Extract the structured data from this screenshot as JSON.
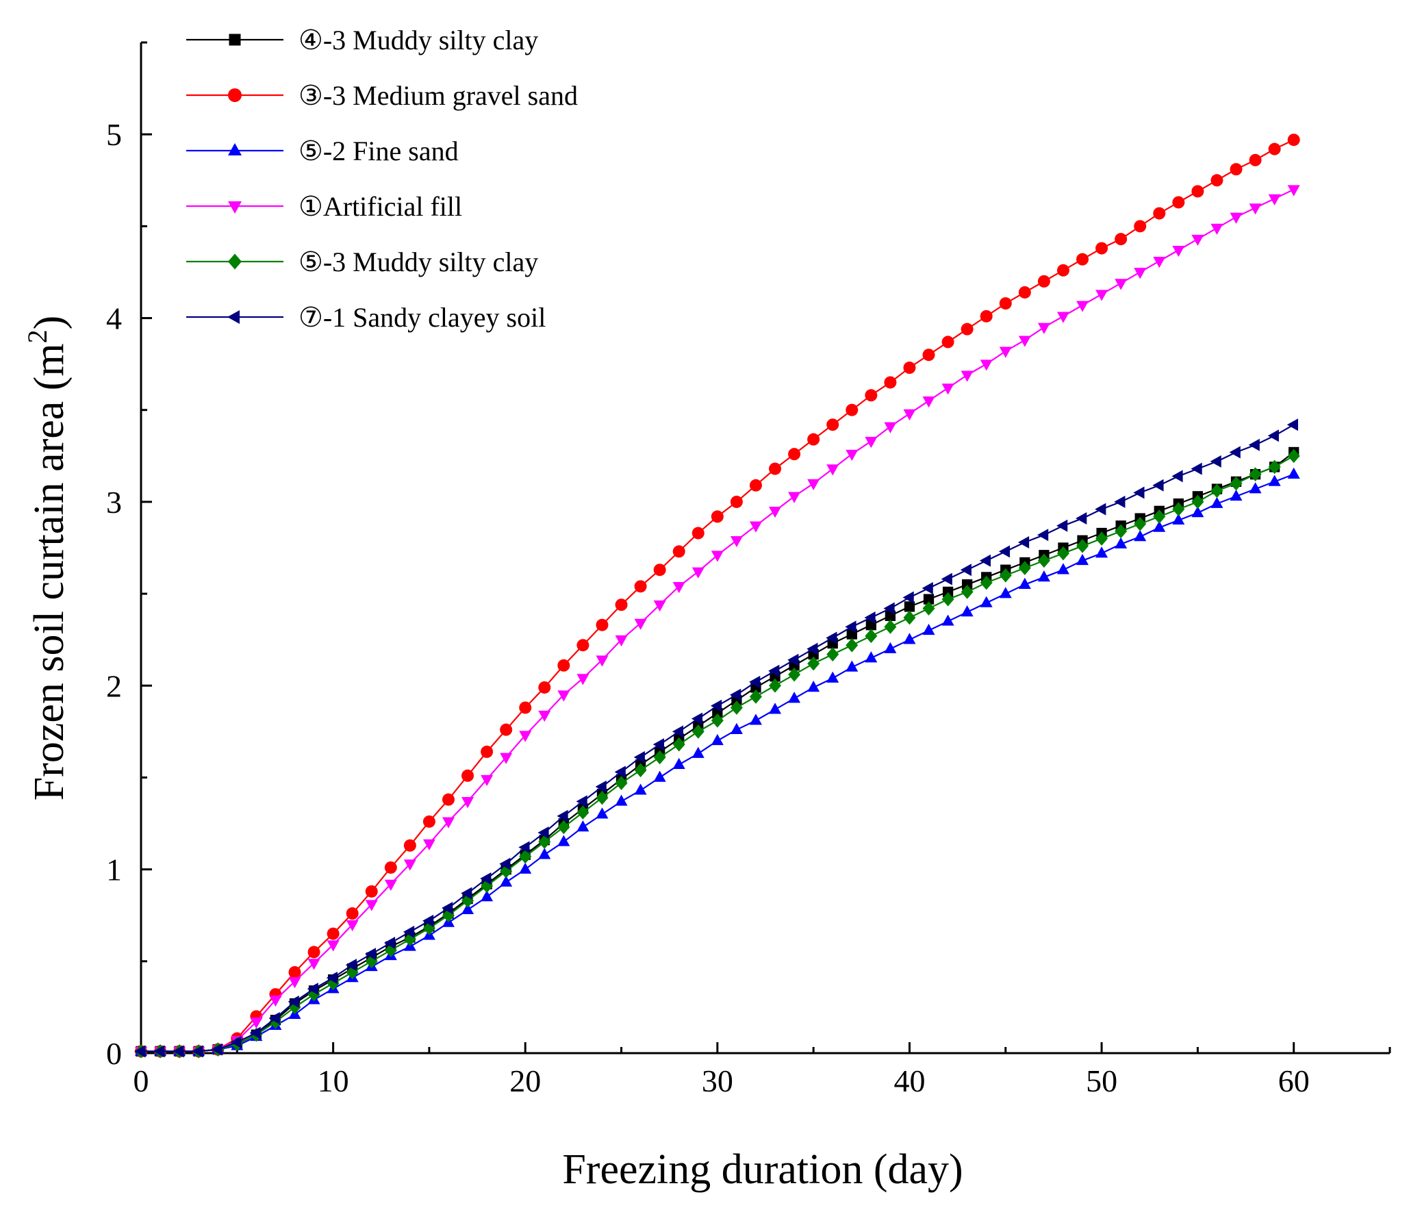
{
  "chart_data": {
    "type": "line",
    "title": "",
    "xlabel": "Freezing duration (day)",
    "ylabel_main": "Frozen soil curtain area (m",
    "ylabel_sup": "2",
    "ylabel_close": ")",
    "xlim": [
      0,
      65
    ],
    "ylim": [
      0,
      5.5
    ],
    "xticks": [
      0,
      10,
      20,
      30,
      40,
      50,
      60
    ],
    "yticks": [
      0,
      1,
      2,
      3,
      4,
      5
    ],
    "legend_position": "top-left",
    "series": [
      {
        "name": "④-3 Muddy silty clay",
        "color": "#000000",
        "marker": "square",
        "y": [
          0.01,
          0.01,
          0.01,
          0.01,
          0.02,
          0.05,
          0.1,
          0.18,
          0.27,
          0.34,
          0.4,
          0.46,
          0.52,
          0.58,
          0.63,
          0.69,
          0.76,
          0.84,
          0.92,
          1.0,
          1.08,
          1.16,
          1.25,
          1.33,
          1.41,
          1.49,
          1.57,
          1.64,
          1.71,
          1.78,
          1.85,
          1.92,
          1.99,
          2.05,
          2.11,
          2.17,
          2.23,
          2.28,
          2.33,
          2.38,
          2.43,
          2.47,
          2.51,
          2.55,
          2.59,
          2.63,
          2.67,
          2.71,
          2.75,
          2.79,
          2.83,
          2.87,
          2.91,
          2.95,
          2.99,
          3.03,
          3.07,
          3.11,
          3.15,
          3.19,
          3.27
        ]
      },
      {
        "name": "③-3 Medium gravel sand",
        "color": "#ff0000",
        "marker": "circle",
        "y": [
          0.01,
          0.01,
          0.01,
          0.01,
          0.02,
          0.08,
          0.2,
          0.32,
          0.44,
          0.55,
          0.65,
          0.76,
          0.88,
          1.01,
          1.13,
          1.26,
          1.38,
          1.51,
          1.64,
          1.76,
          1.88,
          1.99,
          2.11,
          2.22,
          2.33,
          2.44,
          2.54,
          2.63,
          2.73,
          2.83,
          2.92,
          3.0,
          3.09,
          3.18,
          3.26,
          3.34,
          3.42,
          3.5,
          3.58,
          3.65,
          3.73,
          3.8,
          3.87,
          3.94,
          4.01,
          4.08,
          4.14,
          4.2,
          4.26,
          4.32,
          4.38,
          4.43,
          4.5,
          4.57,
          4.63,
          4.69,
          4.75,
          4.81,
          4.86,
          4.92,
          4.97
        ]
      },
      {
        "name": "⑤-2 Fine sand",
        "color": "#0000ff",
        "marker": "triangle-up",
        "y": [
          0.01,
          0.01,
          0.01,
          0.01,
          0.02,
          0.04,
          0.09,
          0.15,
          0.21,
          0.29,
          0.35,
          0.41,
          0.47,
          0.53,
          0.58,
          0.64,
          0.71,
          0.78,
          0.85,
          0.93,
          1.0,
          1.08,
          1.15,
          1.23,
          1.3,
          1.37,
          1.43,
          1.5,
          1.57,
          1.63,
          1.7,
          1.76,
          1.81,
          1.87,
          1.93,
          1.99,
          2.04,
          2.1,
          2.15,
          2.2,
          2.25,
          2.3,
          2.35,
          2.4,
          2.45,
          2.5,
          2.55,
          2.59,
          2.63,
          2.68,
          2.72,
          2.77,
          2.81,
          2.86,
          2.9,
          2.94,
          2.99,
          3.03,
          3.07,
          3.11,
          3.15
        ]
      },
      {
        "name": "①Artificial fill",
        "color": "#ff00ff",
        "marker": "triangle-down",
        "y": [
          0.01,
          0.01,
          0.01,
          0.01,
          0.02,
          0.07,
          0.17,
          0.29,
          0.39,
          0.49,
          0.59,
          0.7,
          0.81,
          0.92,
          1.03,
          1.14,
          1.26,
          1.37,
          1.49,
          1.61,
          1.73,
          1.84,
          1.95,
          2.04,
          2.14,
          2.25,
          2.34,
          2.44,
          2.54,
          2.62,
          2.71,
          2.79,
          2.87,
          2.95,
          3.03,
          3.1,
          3.18,
          3.26,
          3.33,
          3.41,
          3.48,
          3.55,
          3.62,
          3.69,
          3.75,
          3.82,
          3.88,
          3.95,
          4.01,
          4.07,
          4.13,
          4.19,
          4.25,
          4.31,
          4.37,
          4.43,
          4.49,
          4.55,
          4.6,
          4.65,
          4.7
        ]
      },
      {
        "name": "⑤-3 Muddy silty clay",
        "color": "#008000",
        "marker": "diamond",
        "y": [
          0.01,
          0.01,
          0.01,
          0.01,
          0.02,
          0.05,
          0.1,
          0.17,
          0.25,
          0.32,
          0.38,
          0.44,
          0.5,
          0.56,
          0.62,
          0.68,
          0.75,
          0.83,
          0.91,
          0.99,
          1.07,
          1.15,
          1.23,
          1.31,
          1.39,
          1.47,
          1.54,
          1.61,
          1.68,
          1.75,
          1.81,
          1.88,
          1.94,
          2.0,
          2.06,
          2.12,
          2.17,
          2.22,
          2.27,
          2.32,
          2.37,
          2.42,
          2.47,
          2.51,
          2.56,
          2.6,
          2.64,
          2.68,
          2.72,
          2.76,
          2.8,
          2.84,
          2.88,
          2.92,
          2.96,
          3.0,
          3.06,
          3.1,
          3.15,
          3.19,
          3.25
        ]
      },
      {
        "name": "⑦-1 Sandy clayey soil",
        "color": "#000080",
        "marker": "triangle-left",
        "y": [
          0.01,
          0.01,
          0.01,
          0.01,
          0.02,
          0.06,
          0.11,
          0.19,
          0.28,
          0.35,
          0.41,
          0.48,
          0.54,
          0.6,
          0.66,
          0.72,
          0.79,
          0.87,
          0.95,
          1.03,
          1.12,
          1.2,
          1.29,
          1.37,
          1.45,
          1.53,
          1.61,
          1.68,
          1.75,
          1.82,
          1.89,
          1.95,
          2.02,
          2.08,
          2.14,
          2.2,
          2.26,
          2.32,
          2.37,
          2.42,
          2.48,
          2.53,
          2.58,
          2.63,
          2.68,
          2.73,
          2.78,
          2.82,
          2.87,
          2.91,
          2.96,
          3.0,
          3.05,
          3.09,
          3.14,
          3.18,
          3.22,
          3.27,
          3.31,
          3.36,
          3.42
        ]
      }
    ]
  }
}
